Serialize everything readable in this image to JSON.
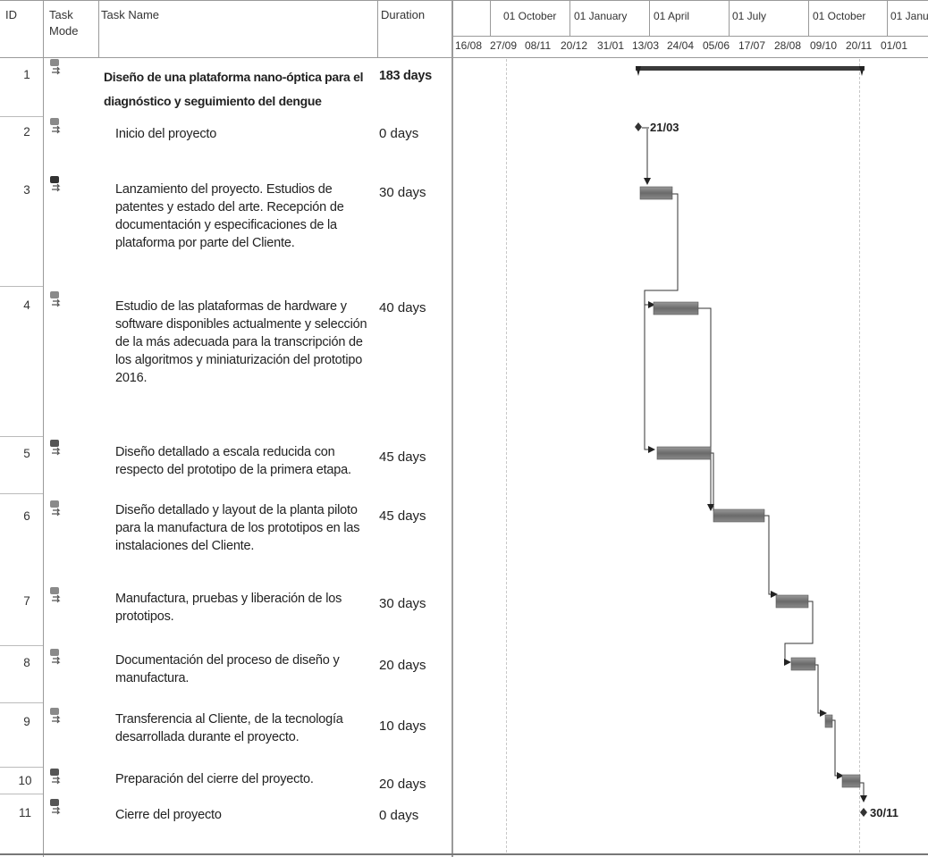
{
  "columns": {
    "id": "ID",
    "task_mode_line1": "Task",
    "task_mode_line2": "Mode",
    "task_name": "Task Name",
    "duration": "Duration"
  },
  "timescale": {
    "top": [
      "01 October",
      "01 January",
      "01 April",
      "01 July",
      "01 October",
      "01 Janu"
    ],
    "bottom": [
      "16/08",
      "27/09",
      "08/11",
      "20/12",
      "31/01",
      "13/03",
      "24/04",
      "05/06",
      "17/07",
      "28/08",
      "09/10",
      "20/11",
      "01/01"
    ]
  },
  "tasks": [
    {
      "id": "1",
      "lines": [
        "Diseño de una plataforma nano-óptica para el",
        "diagnóstico y seguimiento del dengue"
      ],
      "duration": "183 days",
      "summary": true
    },
    {
      "id": "2",
      "lines": [
        "Inicio del proyecto"
      ],
      "duration": "0 days"
    },
    {
      "id": "3",
      "lines": [
        "Lanzamiento del proyecto. Estudios de",
        "patentes y estado del arte. Recepción de",
        "documentación y especificaciones de la",
        "plataforma por parte del Cliente."
      ],
      "duration": "30 days"
    },
    {
      "id": "4",
      "lines": [
        "Estudio de las plataformas de hardware y",
        "software disponibles actualmente y selección",
        "de la más adecuada para la transcripción de",
        "los algoritmos y miniaturización del prototipo",
        "2016."
      ],
      "duration": "40 days"
    },
    {
      "id": "5",
      "lines": [
        "Diseño detallado a escala reducida con",
        "respecto del prototipo de la primera etapa."
      ],
      "duration": "45 days"
    },
    {
      "id": "6",
      "lines": [
        "Diseño detallado y layout de la planta piloto",
        "para la manufactura de los prototipos en las",
        "instalaciones del Cliente."
      ],
      "duration": "45 days"
    },
    {
      "id": "7",
      "lines": [
        "Manufactura, pruebas y liberación de los",
        "prototipos."
      ],
      "duration": "30 days"
    },
    {
      "id": "8",
      "lines": [
        "Documentación del proceso de diseño y",
        "manufactura."
      ],
      "duration": "20 days"
    },
    {
      "id": "9",
      "lines": [
        "Transferencia al Cliente, de la tecnología",
        "desarrollada durante el proyecto."
      ],
      "duration": "10 days"
    },
    {
      "id": "10",
      "lines": [
        "Preparación del cierre del proyecto."
      ],
      "duration": "20 days"
    },
    {
      "id": "11",
      "lines": [
        "Cierre del proyecto"
      ],
      "duration": "0 days"
    }
  ],
  "milestones": {
    "start": "21/03",
    "end": "30/11"
  },
  "colors": {
    "bar": "#6f6f6f",
    "summary_bar": "#3a3a3a",
    "grid": "#9a9a9a"
  }
}
